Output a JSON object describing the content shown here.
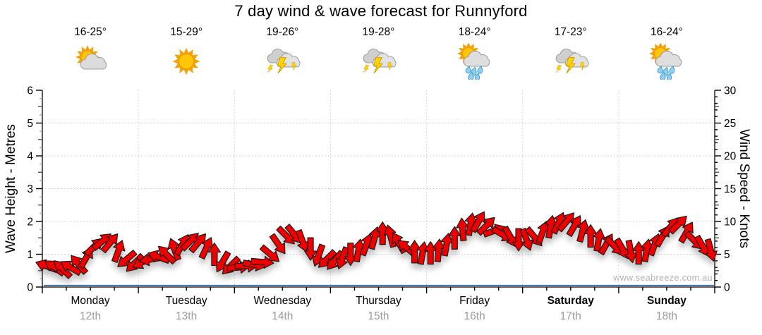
{
  "title": "7 day wind & wave forecast for Runnyford",
  "watermark": "www.seabreeze.com.au",
  "header": {
    "days": [
      {
        "temp": "16-25°",
        "icon": "partly-cloudy"
      },
      {
        "temp": "15-29°",
        "icon": "sunny"
      },
      {
        "temp": "19-26°",
        "icon": "storm"
      },
      {
        "temp": "19-28°",
        "icon": "storm"
      },
      {
        "temp": "18-24°",
        "icon": "sun-showers"
      },
      {
        "temp": "17-23°",
        "icon": "storm"
      },
      {
        "temp": "16-24°",
        "icon": "sun-showers"
      }
    ]
  },
  "chart_data": {
    "type": "wind-barb-timeseries",
    "title": "7 day wind & wave forecast for Runnyford",
    "x_axis": {
      "hours_span": 168,
      "minor_tick_hours": 6,
      "gridlines_at_day_boundaries": true,
      "days": [
        {
          "name": "Monday",
          "date": "12th",
          "bold": false
        },
        {
          "name": "Tuesday",
          "date": "13th",
          "bold": false
        },
        {
          "name": "Wednesday",
          "date": "14th",
          "bold": false
        },
        {
          "name": "Thursday",
          "date": "15th",
          "bold": false
        },
        {
          "name": "Friday",
          "date": "16th",
          "bold": false
        },
        {
          "name": "Saturday",
          "date": "17th",
          "bold": true
        },
        {
          "name": "Sunday",
          "date": "18th",
          "bold": true
        }
      ]
    },
    "y_left": {
      "label": "Wave Height - Metres",
      "min": 0,
      "max": 6,
      "ticks": [
        0,
        1,
        2,
        3,
        4,
        5,
        6
      ],
      "gridlines": [
        1,
        2,
        3,
        4,
        5
      ]
    },
    "y_right": {
      "label": "Wind Speed - Knots",
      "min": 0,
      "max": 30,
      "ticks": [
        0,
        5,
        10,
        15,
        20,
        25,
        30
      ]
    },
    "wave_height_series": {
      "style": "line",
      "color": "#2a6496",
      "flat_value_m": 0.05
    },
    "wind_series": {
      "style": "arrows",
      "color": "#ee0000",
      "outline": "#151515",
      "point_format": [
        "hour",
        "knots",
        "direction_deg_clockwise_from_east"
      ],
      "points": [
        [
          1,
          3.2,
          200
        ],
        [
          3,
          3.0,
          215
        ],
        [
          5,
          2.8,
          225
        ],
        [
          7,
          3.0,
          210
        ],
        [
          9,
          3.5,
          230
        ],
        [
          11,
          4.5,
          300
        ],
        [
          13,
          6.2,
          315
        ],
        [
          15,
          7.0,
          320
        ],
        [
          17,
          6.8,
          310
        ],
        [
          19,
          5.5,
          290
        ],
        [
          21,
          4.2,
          140
        ],
        [
          23,
          3.6,
          135
        ],
        [
          25,
          3.8,
          150
        ],
        [
          27,
          4.2,
          170
        ],
        [
          29,
          4.6,
          200
        ],
        [
          31,
          5.0,
          225
        ],
        [
          33,
          5.8,
          250
        ],
        [
          35,
          6.5,
          300
        ],
        [
          37,
          7.0,
          315
        ],
        [
          39,
          6.8,
          310
        ],
        [
          41,
          6.0,
          295
        ],
        [
          43,
          5.0,
          270
        ],
        [
          45,
          3.8,
          120
        ],
        [
          47,
          3.2,
          135
        ],
        [
          49,
          3.0,
          355
        ],
        [
          51,
          3.2,
          0
        ],
        [
          53,
          3.4,
          10
        ],
        [
          55,
          3.8,
          5
        ],
        [
          57,
          5.0,
          40
        ],
        [
          59,
          6.5,
          55
        ],
        [
          61,
          7.8,
          45
        ],
        [
          63,
          8.0,
          50
        ],
        [
          65,
          7.0,
          70
        ],
        [
          67,
          5.8,
          90
        ],
        [
          69,
          4.8,
          110
        ],
        [
          71,
          4.2,
          135
        ],
        [
          73,
          4.0,
          130
        ],
        [
          75,
          4.4,
          110
        ],
        [
          77,
          5.0,
          90
        ],
        [
          79,
          5.6,
          280
        ],
        [
          81,
          6.5,
          290
        ],
        [
          83,
          7.5,
          285
        ],
        [
          85,
          8.2,
          270
        ],
        [
          87,
          7.8,
          255
        ],
        [
          89,
          6.8,
          240
        ],
        [
          91,
          6.0,
          220
        ],
        [
          93,
          5.4,
          270
        ],
        [
          95,
          5.2,
          280
        ],
        [
          97,
          5.2,
          270
        ],
        [
          99,
          5.6,
          275
        ],
        [
          101,
          6.5,
          280
        ],
        [
          103,
          7.5,
          270
        ],
        [
          105,
          8.8,
          265
        ],
        [
          107,
          9.6,
          280
        ],
        [
          109,
          10.0,
          300
        ],
        [
          111,
          9.4,
          315
        ],
        [
          113,
          8.6,
          340
        ],
        [
          115,
          8.0,
          30
        ],
        [
          117,
          7.6,
          60
        ],
        [
          119,
          7.2,
          90
        ],
        [
          121,
          7.2,
          70
        ],
        [
          123,
          7.6,
          50
        ],
        [
          125,
          8.4,
          290
        ],
        [
          127,
          9.2,
          280
        ],
        [
          129,
          9.8,
          295
        ],
        [
          131,
          10.0,
          310
        ],
        [
          133,
          9.4,
          300
        ],
        [
          135,
          8.6,
          285
        ],
        [
          137,
          7.8,
          270
        ],
        [
          139,
          7.2,
          280
        ],
        [
          141,
          6.6,
          300
        ],
        [
          143,
          6.2,
          45
        ],
        [
          145,
          5.8,
          60
        ],
        [
          147,
          5.4,
          80
        ],
        [
          149,
          5.2,
          270
        ],
        [
          151,
          5.6,
          280
        ],
        [
          153,
          6.5,
          290
        ],
        [
          155,
          7.8,
          300
        ],
        [
          157,
          9.2,
          310
        ],
        [
          159,
          9.6,
          315
        ],
        [
          161,
          8.4,
          300
        ],
        [
          163,
          7.0,
          45
        ],
        [
          165,
          6.2,
          60
        ],
        [
          167,
          5.6,
          75
        ]
      ]
    }
  },
  "colors": {
    "arrow_red": "#ee0000",
    "grid_gray": "#c8c8c8",
    "date_gray": "#9b9b9b",
    "watermark_gray": "#b2b2b2",
    "wave_blue": "#2a6496",
    "axis_black": "#000000"
  }
}
